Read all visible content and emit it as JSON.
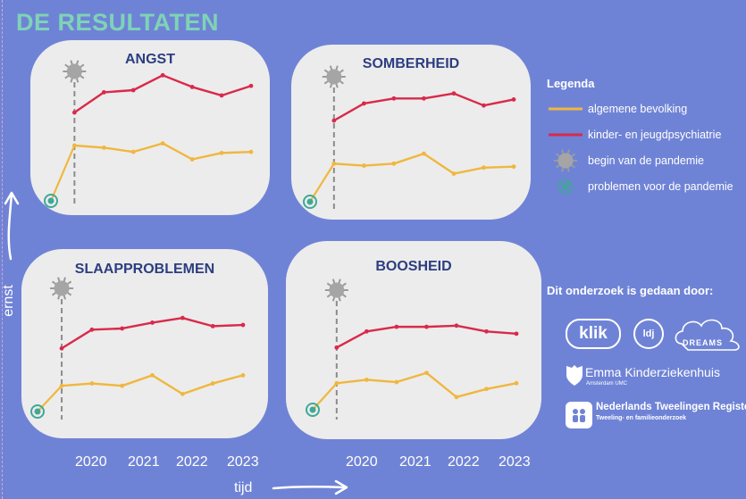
{
  "page": {
    "title": "DE RESULTATEN"
  },
  "chart_data": [
    {
      "type": "line",
      "title": "ANGST",
      "categories": [
        "2020",
        "2021",
        "2022",
        "2023"
      ],
      "x": [
        2019.3,
        2019.7,
        2020.2,
        2020.7,
        2021.2,
        2021.7,
        2022.2,
        2022.7,
        2023.2
      ],
      "baseline": {
        "x": 2019.3,
        "y": 0
      },
      "series": [
        {
          "name": "kinder- en jeugdpsychiatrie",
          "x": [
            2019.7,
            2020.2,
            2020.7,
            2021.2,
            2021.7,
            2022.2,
            2022.7
          ],
          "values": [
            8.3,
            10.2,
            10.4,
            11.8,
            10.7,
            9.9,
            10.8
          ]
        },
        {
          "name": "algemene bevolking",
          "x": [
            2019.7,
            2020.2,
            2020.7,
            2021.2,
            2021.7,
            2022.2,
            2022.7
          ],
          "values": [
            5.2,
            5.0,
            4.6,
            5.4,
            3.9,
            4.5,
            4.6
          ]
        }
      ],
      "pandemic_start": 2019.7
    },
    {
      "type": "line",
      "title": "SOMBERHEID",
      "categories": [
        "2020",
        "2021",
        "2022",
        "2023"
      ],
      "baseline": {
        "x": 2019.3,
        "y": 0
      },
      "series": [
        {
          "name": "kinder- en jeugdpsychiatrie",
          "x": [
            2019.7,
            2020.2,
            2020.7,
            2021.2,
            2021.7,
            2022.2,
            2022.7
          ],
          "values": [
            8.1,
            9.8,
            10.3,
            10.3,
            10.8,
            9.6,
            10.2
          ]
        },
        {
          "name": "algemene bevolking",
          "x": [
            2019.7,
            2020.2,
            2020.7,
            2021.2,
            2021.7,
            2022.2,
            2022.7
          ],
          "values": [
            3.8,
            3.6,
            3.8,
            4.8,
            2.8,
            3.4,
            3.5
          ]
        }
      ],
      "pandemic_start": 2019.7
    },
    {
      "type": "line",
      "title": "SLAAPPROBLEMEN",
      "categories": [
        "2020",
        "2021",
        "2022",
        "2023"
      ],
      "baseline": {
        "x": 2019.3,
        "y": 0
      },
      "series": [
        {
          "name": "kinder- en jeugdpsychiatrie",
          "x": [
            2019.7,
            2020.2,
            2020.7,
            2021.2,
            2021.7,
            2022.2,
            2022.7
          ],
          "values": [
            5.4,
            7.0,
            7.1,
            7.6,
            8.0,
            7.3,
            7.4
          ]
        },
        {
          "name": "algemene bevolking",
          "x": [
            2019.7,
            2020.2,
            2020.7,
            2021.2,
            2021.7,
            2022.2,
            2022.7
          ],
          "values": [
            2.2,
            2.4,
            2.2,
            3.1,
            1.5,
            2.4,
            3.1
          ]
        }
      ],
      "pandemic_start": 2019.7
    },
    {
      "type": "line",
      "title": "BOOSHEID",
      "categories": [
        "2020",
        "2021",
        "2022",
        "2023"
      ],
      "baseline": {
        "x": 2019.3,
        "y": 0
      },
      "series": [
        {
          "name": "kinder- en jeugdpsychiatrie",
          "x": [
            2019.7,
            2020.2,
            2020.7,
            2021.2,
            2021.7,
            2022.2,
            2022.7
          ],
          "values": [
            5.4,
            6.8,
            7.2,
            7.2,
            7.3,
            6.8,
            6.6
          ]
        },
        {
          "name": "algemene bevolking",
          "x": [
            2019.7,
            2020.2,
            2020.7,
            2021.2,
            2021.7,
            2022.2,
            2022.7
          ],
          "values": [
            2.3,
            2.6,
            2.4,
            3.2,
            1.1,
            1.8,
            2.3
          ]
        }
      ],
      "pandemic_start": 2019.7
    }
  ],
  "axes": {
    "x_label": "tijd",
    "y_label": "ernst"
  },
  "legend": {
    "title": "Legenda",
    "items": [
      {
        "label": "algemene bevolking",
        "marker": "yellow-line",
        "color": "#f0b73e"
      },
      {
        "label": "kinder- en jeugdpsychiatrie",
        "marker": "red-line",
        "color": "#d92a4a"
      },
      {
        "label": "begin van de pandemie",
        "marker": "virus-icon"
      },
      {
        "label": "problemen voor de pandemie",
        "marker": "teal-circle",
        "color": "#3fa897"
      }
    ]
  },
  "credits": {
    "heading": "Dit onderzoek is gedaan door:",
    "klik": "klik",
    "ldj": "ldj",
    "dreams": "DREAMS",
    "emma": "Emma Kinderziekenhuis",
    "emma_sub": "Amsterdam UMC",
    "ntr": "Nederlands Tweelingen Register",
    "ntr_sub": "Tweeling- en familieonderzoek"
  },
  "colors": {
    "background": "#6f83d6",
    "panel": "#ececec",
    "red": "#d92a4a",
    "yellow": "#f0b73e",
    "teal": "#3fa897",
    "title": "#7ed3b6"
  }
}
